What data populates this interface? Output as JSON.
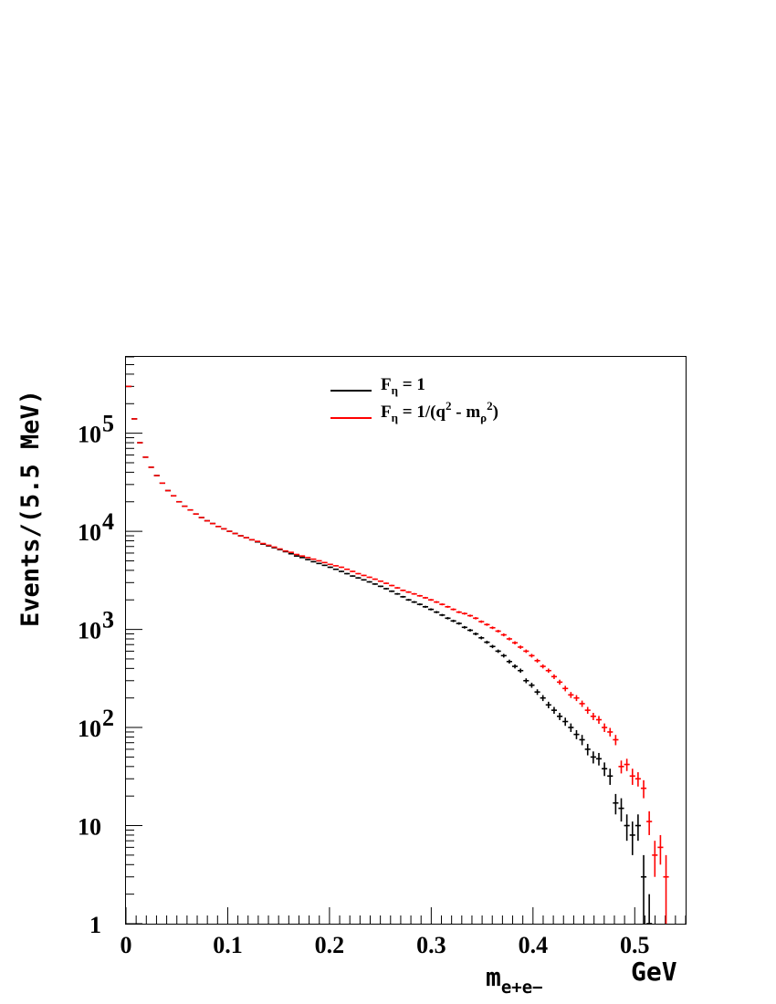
{
  "chart_data": {
    "type": "scatter",
    "ylabel": "Events/(5.5 MeV)",
    "xlabel_main": "m",
    "xlabel_sub": "e+e−",
    "xunit": "GeV",
    "xlim": [
      0,
      0.55
    ],
    "ylim": [
      1,
      600000
    ],
    "yscale": "log",
    "grid": false,
    "legend_position": "top-center",
    "x_ticks": [
      {
        "value": 0,
        "label": "0"
      },
      {
        "value": 0.1,
        "label": "0.1"
      },
      {
        "value": 0.2,
        "label": "0.2"
      },
      {
        "value": 0.3,
        "label": "0.3"
      },
      {
        "value": 0.4,
        "label": "0.4"
      },
      {
        "value": 0.5,
        "label": "0.5"
      }
    ],
    "y_ticks": [
      {
        "value": 1,
        "base": "1",
        "exp": ""
      },
      {
        "value": 10,
        "base": "10",
        "exp": ""
      },
      {
        "value": 100,
        "base": "10",
        "exp": "2"
      },
      {
        "value": 1000,
        "base": "10",
        "exp": "3"
      },
      {
        "value": 10000,
        "base": "10",
        "exp": "4"
      },
      {
        "value": 100000,
        "base": "10",
        "exp": "5"
      }
    ],
    "series": [
      {
        "color": "#000000",
        "legend": {
          "pre": "F",
          "sub1": "η",
          "mid": " = 1",
          "sup": "",
          "sub2": "",
          "post": ""
        },
        "x": [
          0.00275,
          0.00825,
          0.01375,
          0.01925,
          0.02475,
          0.03025,
          0.03575,
          0.04125,
          0.04675,
          0.05225,
          0.05775,
          0.06325,
          0.06875,
          0.07425,
          0.07975,
          0.08525,
          0.09075,
          0.09625,
          0.10175,
          0.10725,
          0.11275,
          0.11825,
          0.12375,
          0.12925,
          0.13475,
          0.14025,
          0.14575,
          0.15125,
          0.15675,
          0.16225,
          0.16775,
          0.17325,
          0.17875,
          0.18425,
          0.18975,
          0.19525,
          0.20075,
          0.20625,
          0.21175,
          0.21725,
          0.22275,
          0.22825,
          0.23375,
          0.23925,
          0.24475,
          0.25025,
          0.25575,
          0.26125,
          0.26675,
          0.27225,
          0.27775,
          0.28325,
          0.28875,
          0.29425,
          0.29975,
          0.30525,
          0.31075,
          0.31625,
          0.32175,
          0.32725,
          0.33275,
          0.33825,
          0.34375,
          0.34925,
          0.35475,
          0.36025,
          0.36575,
          0.37125,
          0.37675,
          0.38225,
          0.38775,
          0.39325,
          0.39875,
          0.40425,
          0.40975,
          0.41525,
          0.42075,
          0.42625,
          0.43175,
          0.43725,
          0.44275,
          0.44825,
          0.45375,
          0.45925,
          0.46475,
          0.47025,
          0.47575,
          0.48125,
          0.48675,
          0.49225,
          0.49775,
          0.50325,
          0.50875,
          0.51425
        ],
        "y": [
          300000,
          140000,
          80000,
          57000,
          45000,
          37000,
          31000,
          26000,
          23000,
          20000,
          18000,
          16500,
          15000,
          13800,
          12800,
          12000,
          11200,
          10600,
          10000,
          9500,
          9000,
          8600,
          8200,
          7800,
          7400,
          7100,
          6800,
          6500,
          6200,
          5900,
          5600,
          5400,
          5150,
          4900,
          4700,
          4500,
          4300,
          4100,
          3900,
          3700,
          3500,
          3350,
          3200,
          3050,
          2900,
          2750,
          2600,
          2450,
          2300,
          2150,
          2000,
          1900,
          1800,
          1700,
          1600,
          1500,
          1400,
          1300,
          1220,
          1150,
          1050,
          980,
          900,
          820,
          740,
          670,
          600,
          540,
          470,
          420,
          380,
          300,
          270,
          230,
          200,
          170,
          150,
          130,
          115,
          100,
          85,
          75,
          60,
          50,
          48,
          38,
          32,
          17,
          15,
          10,
          8,
          10,
          3,
          1
        ],
        "err": [
          550,
          370,
          280,
          240,
          210,
          190,
          176,
          161,
          152,
          141,
          134,
          128,
          122,
          117,
          113,
          110,
          106,
          103,
          100,
          97,
          95,
          93,
          91,
          88,
          86,
          84,
          82,
          81,
          79,
          77,
          75,
          73,
          72,
          70,
          69,
          67,
          66,
          64,
          62,
          61,
          59,
          58,
          57,
          55,
          54,
          52,
          51,
          49,
          48,
          46,
          45,
          44,
          42,
          41,
          40,
          39,
          37,
          36,
          35,
          34,
          32,
          31,
          30,
          29,
          27,
          26,
          24,
          23,
          22,
          20,
          19,
          17,
          16,
          15,
          14,
          13,
          12,
          11,
          11,
          10,
          9,
          9,
          8,
          7,
          7,
          6,
          6,
          4,
          4,
          3,
          3,
          3,
          2,
          1
        ]
      },
      {
        "color": "#ff0000",
        "legend": {
          "pre": "F",
          "sub1": "η",
          "mid": " = 1/(q",
          "sup": "2",
          "sub2": "ρ",
          "post": ")"
        },
        "x": [
          0.00275,
          0.00825,
          0.01375,
          0.01925,
          0.02475,
          0.03025,
          0.03575,
          0.04125,
          0.04675,
          0.05225,
          0.05775,
          0.06325,
          0.06875,
          0.07425,
          0.07975,
          0.08525,
          0.09075,
          0.09625,
          0.10175,
          0.10725,
          0.11275,
          0.11825,
          0.12375,
          0.12925,
          0.13475,
          0.14025,
          0.14575,
          0.15125,
          0.15675,
          0.16225,
          0.16775,
          0.17325,
          0.17875,
          0.18425,
          0.18975,
          0.19525,
          0.20075,
          0.20625,
          0.21175,
          0.21725,
          0.22275,
          0.22825,
          0.23375,
          0.23925,
          0.24475,
          0.25025,
          0.25575,
          0.26125,
          0.26675,
          0.27225,
          0.27775,
          0.28325,
          0.28875,
          0.29425,
          0.29975,
          0.30525,
          0.31075,
          0.31625,
          0.32175,
          0.32725,
          0.33275,
          0.33825,
          0.34375,
          0.34925,
          0.35475,
          0.36025,
          0.36575,
          0.37125,
          0.37675,
          0.38225,
          0.38775,
          0.39325,
          0.39875,
          0.40425,
          0.40975,
          0.41525,
          0.42075,
          0.42625,
          0.43175,
          0.43725,
          0.44275,
          0.44825,
          0.45375,
          0.45925,
          0.46475,
          0.47025,
          0.47575,
          0.48125,
          0.48675,
          0.49225,
          0.49775,
          0.50325,
          0.50875,
          0.51425,
          0.51975,
          0.52525,
          0.53075
        ],
        "y": [
          300000,
          140000,
          80000,
          57000,
          45000,
          37000,
          31000,
          26000,
          23000,
          20000,
          18000,
          16500,
          15000,
          13800,
          12800,
          12000,
          11200,
          10600,
          10000,
          9500,
          9000,
          8600,
          8200,
          7900,
          7500,
          7200,
          6900,
          6600,
          6300,
          6100,
          5800,
          5600,
          5400,
          5200,
          5000,
          4800,
          4600,
          4450,
          4300,
          4100,
          3900,
          3700,
          3550,
          3400,
          3250,
          3100,
          2950,
          2800,
          2650,
          2500,
          2400,
          2300,
          2200,
          2100,
          2000,
          1900,
          1800,
          1700,
          1600,
          1500,
          1450,
          1380,
          1300,
          1200,
          1120,
          1040,
          960,
          880,
          800,
          730,
          660,
          600,
          540,
          480,
          420,
          380,
          330,
          290,
          250,
          215,
          200,
          175,
          150,
          130,
          120,
          100,
          90,
          75,
          40,
          42,
          32,
          30,
          24,
          11,
          5,
          6,
          3
        ],
        "err": [
          550,
          370,
          280,
          240,
          210,
          190,
          176,
          161,
          152,
          141,
          134,
          128,
          122,
          117,
          113,
          110,
          106,
          103,
          100,
          97,
          95,
          93,
          91,
          89,
          87,
          85,
          83,
          81,
          79,
          78,
          76,
          75,
          73,
          72,
          71,
          69,
          68,
          67,
          66,
          64,
          62,
          61,
          60,
          58,
          57,
          56,
          54,
          53,
          51,
          50,
          49,
          48,
          47,
          46,
          45,
          44,
          42,
          41,
          40,
          39,
          38,
          37,
          36,
          35,
          33,
          32,
          31,
          30,
          28,
          27,
          26,
          24,
          23,
          22,
          20,
          19,
          18,
          17,
          16,
          15,
          14,
          13,
          12,
          11,
          11,
          10,
          9,
          9,
          6,
          6,
          6,
          5,
          5,
          3,
          2,
          2,
          2
        ]
      }
    ]
  }
}
